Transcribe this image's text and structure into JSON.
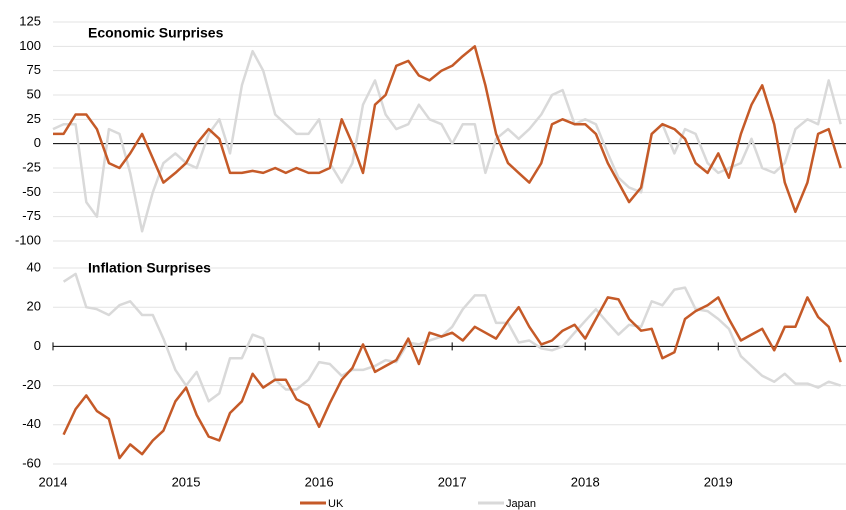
{
  "chart_data": [
    {
      "type": "line",
      "title": "Economic Surprises",
      "x": [
        2014,
        2014.08,
        2014.17,
        2014.25,
        2014.33,
        2014.42,
        2014.5,
        2014.58,
        2014.67,
        2014.75,
        2014.83,
        2014.92,
        2015,
        2015.08,
        2015.17,
        2015.25,
        2015.33,
        2015.42,
        2015.5,
        2015.58,
        2015.67,
        2015.75,
        2015.83,
        2015.92,
        2016,
        2016.08,
        2016.17,
        2016.25,
        2016.33,
        2016.42,
        2016.5,
        2016.58,
        2016.67,
        2016.75,
        2016.83,
        2016.92,
        2017,
        2017.08,
        2017.17,
        2017.25,
        2017.33,
        2017.42,
        2017.5,
        2017.58,
        2017.67,
        2017.75,
        2017.83,
        2017.92,
        2018,
        2018.08,
        2018.17,
        2018.25,
        2018.33,
        2018.42,
        2018.5,
        2018.58,
        2018.67,
        2018.75,
        2018.83,
        2018.92,
        2019,
        2019.08,
        2019.17,
        2019.25,
        2019.33,
        2019.42,
        2019.5,
        2019.58,
        2019.67,
        2019.75,
        2019.83,
        2019.92
      ],
      "xlim": [
        2014,
        2019.96
      ],
      "ylim": [
        -100,
        125
      ],
      "yticks": [
        125,
        100,
        75,
        50,
        25,
        0,
        -25,
        -50,
        -75,
        -100
      ],
      "grid": true,
      "series": [
        {
          "color": "#c55a28",
          "values": [
            10,
            10,
            30,
            30,
            15,
            -20,
            -25,
            -10,
            10,
            -15,
            -40,
            -30,
            -20,
            0,
            15,
            5,
            -30,
            -30,
            -28,
            -30,
            -25,
            -30,
            -25,
            -30,
            -30,
            -25,
            25,
            0,
            -30,
            40,
            50,
            80,
            85,
            70,
            65,
            75,
            80,
            90,
            100,
            60,
            10,
            -20,
            -30,
            -40,
            -20,
            20,
            25,
            20,
            20,
            10,
            -20,
            -40,
            -60,
            -45,
            10,
            20,
            15,
            5,
            -20,
            -30,
            -10,
            -35,
            10,
            40,
            60,
            20,
            -40,
            -70,
            -40,
            10,
            15,
            -25
          ]
        },
        {
          "color": "#d9d9d9",
          "values": [
            15,
            20,
            20,
            -60,
            -75,
            15,
            10,
            -30,
            -90,
            -50,
            -20,
            -10,
            -20,
            -25,
            10,
            25,
            -10,
            60,
            95,
            75,
            30,
            20,
            10,
            10,
            25,
            -20,
            -40,
            -20,
            40,
            65,
            30,
            15,
            20,
            40,
            25,
            20,
            0,
            20,
            20,
            -30,
            5,
            15,
            5,
            15,
            30,
            50,
            55,
            20,
            25,
            20,
            -10,
            -35,
            -45,
            -50,
            10,
            20,
            -10,
            15,
            10,
            -20,
            -30,
            -25,
            -20,
            5,
            -25,
            -30,
            -20,
            15,
            25,
            20,
            65,
            20
          ]
        }
      ]
    },
    {
      "type": "line",
      "title": "Inflation Surprises",
      "x": [
        2014.08,
        2014.17,
        2014.25,
        2014.33,
        2014.42,
        2014.5,
        2014.58,
        2014.67,
        2014.75,
        2014.83,
        2014.92,
        2015,
        2015.08,
        2015.17,
        2015.25,
        2015.33,
        2015.42,
        2015.5,
        2015.58,
        2015.67,
        2015.75,
        2015.83,
        2015.92,
        2016,
        2016.08,
        2016.17,
        2016.25,
        2016.33,
        2016.42,
        2016.5,
        2016.58,
        2016.67,
        2016.75,
        2016.83,
        2016.92,
        2017,
        2017.08,
        2017.17,
        2017.25,
        2017.33,
        2017.42,
        2017.5,
        2017.58,
        2017.67,
        2017.75,
        2017.83,
        2017.92,
        2018,
        2018.08,
        2018.17,
        2018.25,
        2018.33,
        2018.42,
        2018.5,
        2018.58,
        2018.67,
        2018.75,
        2018.83,
        2018.92,
        2019,
        2019.08,
        2019.17,
        2019.25,
        2019.33,
        2019.42,
        2019.5,
        2019.58,
        2019.67,
        2019.75,
        2019.83,
        2019.92
      ],
      "xlim": [
        2014,
        2019.96
      ],
      "xticks": [
        2014,
        2015,
        2016,
        2017,
        2018,
        2019
      ],
      "ylim": [
        -60,
        40
      ],
      "yticks": [
        40,
        20,
        0,
        -20,
        -40,
        -60
      ],
      "grid": true,
      "series": [
        {
          "name": "UK",
          "color": "#c55a28",
          "values": [
            -45,
            -32,
            -25,
            -33,
            -37,
            -57,
            -50,
            -55,
            -48,
            -43,
            -28,
            -21,
            -35,
            -46,
            -48,
            -34,
            -28,
            -14,
            -21,
            -17,
            -17,
            -27,
            -30,
            -41,
            -29,
            -17,
            -11,
            1,
            -13,
            -10,
            -7,
            4,
            -9,
            7,
            5,
            7,
            3,
            10,
            7,
            4,
            13,
            20,
            10,
            1,
            3,
            8,
            11,
            4,
            14,
            25,
            24,
            14,
            8,
            9,
            -6,
            -3,
            14,
            18,
            21,
            25,
            14,
            3,
            6,
            9,
            -2,
            10,
            10,
            25,
            15,
            10,
            -8
          ]
        },
        {
          "name": "Japan",
          "color": "#d9d9d9",
          "values": [
            33,
            37,
            20,
            19,
            16,
            21,
            23,
            16,
            16,
            4,
            -12,
            -20,
            -13,
            -28,
            -24,
            -6,
            -6,
            6,
            4,
            -17,
            -22,
            -22,
            -17,
            -8,
            -9,
            -15,
            -12,
            -12,
            -10,
            -7,
            -8,
            2,
            1,
            3,
            5,
            10,
            19,
            26,
            26,
            12,
            12,
            2,
            3,
            -1,
            -2,
            0,
            7,
            13,
            19,
            12,
            6,
            11,
            10,
            23,
            21,
            29,
            30,
            19,
            18,
            14,
            9,
            -5,
            -10,
            -15,
            -18,
            -14,
            -19,
            -19,
            -21,
            -18,
            -20
          ]
        }
      ]
    }
  ]
}
